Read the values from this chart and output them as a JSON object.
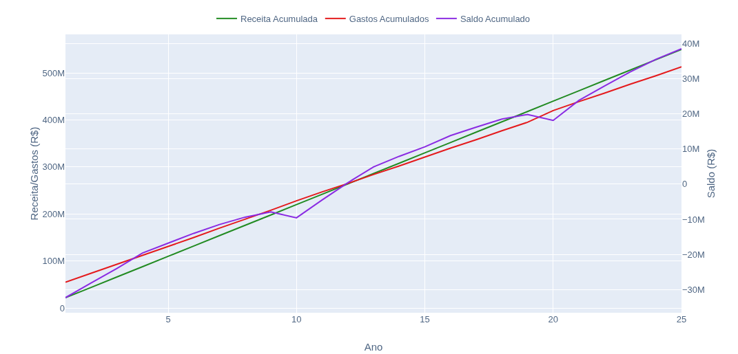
{
  "chart_data": {
    "type": "line",
    "xlabel": "Ano",
    "ylabel": "Receita/Gastos (R$)",
    "y2label": "Saldo (R$)",
    "x": [
      1,
      2,
      3,
      4,
      5,
      6,
      7,
      8,
      9,
      10,
      11,
      12,
      13,
      14,
      15,
      16,
      17,
      18,
      19,
      20,
      21,
      22,
      23,
      24,
      25
    ],
    "series": [
      {
        "name": "Receita Acumulada",
        "color": "#228b22",
        "values": [
          22,
          44,
          66,
          88,
          110,
          132,
          154,
          176,
          198,
          220,
          242,
          264,
          286,
          308,
          330,
          352,
          374,
          396,
          418,
          440,
          462,
          484,
          506,
          528,
          550
        ]
      },
      {
        "name": "Gastos Acumulados",
        "color": "#e41a1c",
        "values": [
          55,
          74,
          93,
          112,
          131,
          150,
          170,
          189,
          208,
          228,
          247,
          265,
          284,
          302,
          321,
          340,
          358,
          377,
          395,
          420,
          439,
          457,
          476,
          494,
          513
        ]
      },
      {
        "name": "Saldo Acumulado",
        "color": "#8a2be2",
        "axis": "y2",
        "values": [
          -32.3,
          -28.1,
          -24,
          -19.6,
          -16.8,
          -14,
          -11.5,
          -9.4,
          -7.9,
          -9.6,
          -4.5,
          0.4,
          4.9,
          7.9,
          10.6,
          13.8,
          16.2,
          18.5,
          19.8,
          18.1,
          23.8,
          27.9,
          31.9,
          35.5,
          38.5
        ]
      }
    ],
    "xlim": [
      1,
      25
    ],
    "xticks": [
      5,
      10,
      15,
      20,
      25
    ],
    "ylim": [
      -10,
      582
    ],
    "yticks": [
      {
        "value": 0,
        "label": "0"
      },
      {
        "value": 100,
        "label": "100M"
      },
      {
        "value": 200,
        "label": "200M"
      },
      {
        "value": 300,
        "label": "300M"
      },
      {
        "value": 400,
        "label": "400M"
      },
      {
        "value": 500,
        "label": "500M"
      }
    ],
    "y2lim": [
      -36.6,
      42.6
    ],
    "y2ticks": [
      {
        "value": -30,
        "label": "−30M"
      },
      {
        "value": -20,
        "label": "−20M"
      },
      {
        "value": -10,
        "label": "−10M"
      },
      {
        "value": 0,
        "label": "0"
      },
      {
        "value": 10,
        "label": "10M"
      },
      {
        "value": 20,
        "label": "20M"
      },
      {
        "value": 30,
        "label": "30M"
      },
      {
        "value": 40,
        "label": "40M"
      }
    ],
    "grid": true,
    "legend": "top",
    "marker": "none",
    "line_style": "solid"
  }
}
